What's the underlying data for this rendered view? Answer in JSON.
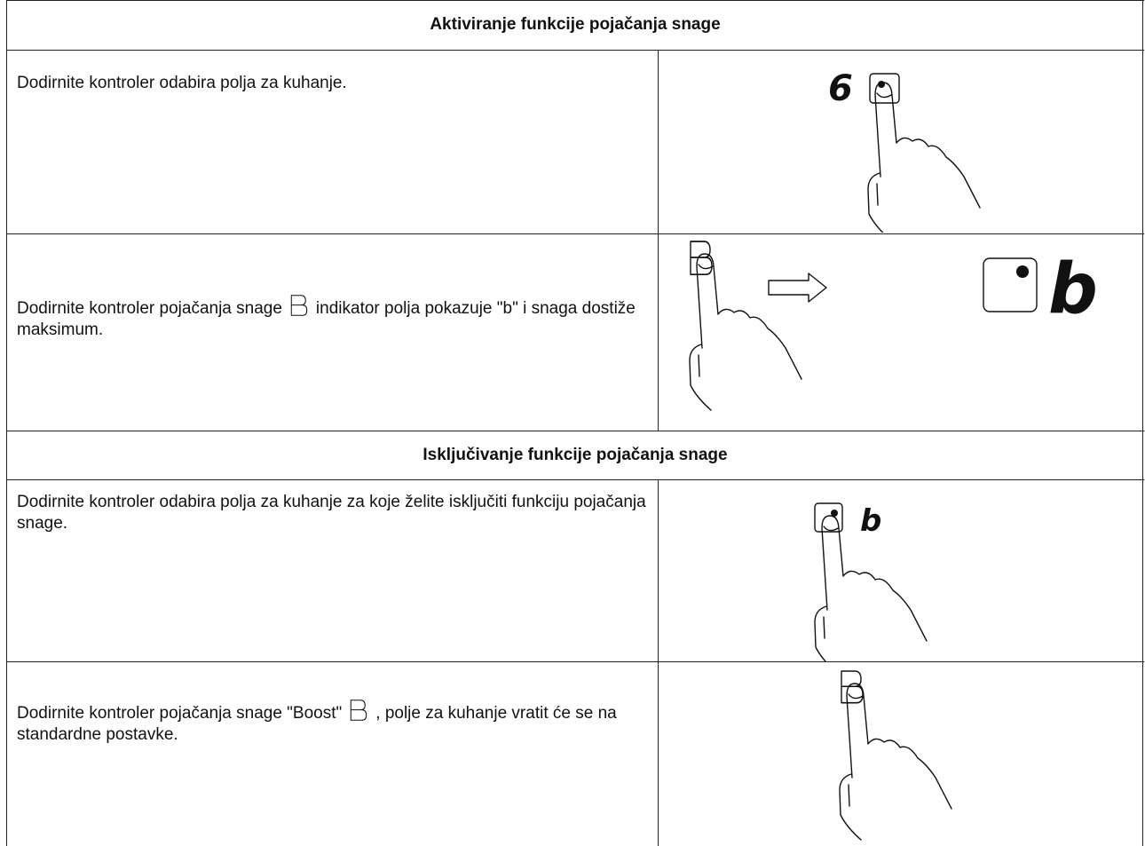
{
  "sections": [
    {
      "title": "Aktiviranje funkcije pojačanja snage",
      "rows": [
        {
          "text": [
            "Dodirnite kontroler odabira polja za kuhanje."
          ],
          "display": [
            "6"
          ]
        },
        {
          "text": [
            "Dodirnite kontroler pojačanja snage",
            "indikator polja pokazuje \"b\" i snaga dostiže maksimum."
          ],
          "display": [
            "b"
          ]
        }
      ]
    },
    {
      "title": "Isključivanje funkcije pojačanja snage",
      "rows": [
        {
          "text": [
            "Dodirnite kontroler odabira polja za kuhanje za koje želite isključiti funkciju pojačanja snage."
          ],
          "display": [
            "b"
          ]
        },
        {
          "text": [
            "Dodirnite kontroler pojačanja snage \"Boost\"",
            ", polje za kuhanje vratit će se na standardne postavke."
          ]
        }
      ]
    }
  ]
}
